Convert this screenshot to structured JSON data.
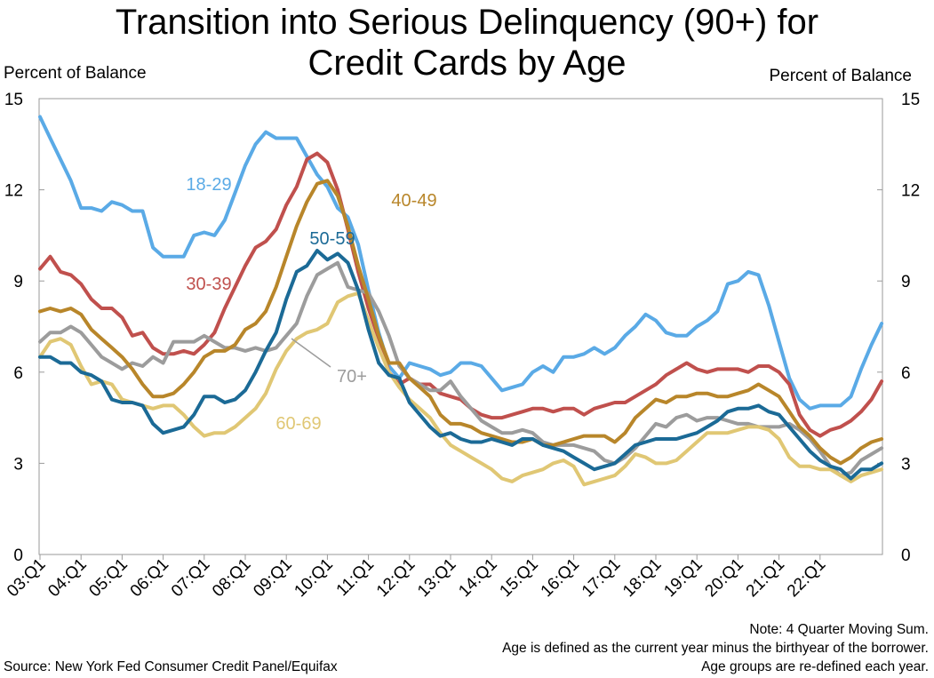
{
  "title_line1": "Transition into Serious Delinquency (90+) for",
  "title_line2": "Credit Cards by Age",
  "left_axis_label": "Percent of Balance",
  "right_axis_label": "Percent of Balance",
  "notes": [
    "Note: 4 Quarter Moving Sum.",
    "Age is defined as the current year minus the birthyear of the borrower.",
    "Age groups are re-defined each year."
  ],
  "source": "Source: New York Fed Consumer Credit Panel/Equifax",
  "chart_data": {
    "type": "line",
    "title": "Transition into Serious Delinquency (90+) for Credit Cards by Age",
    "ylabel": "Percent of Balance",
    "ylim": [
      0,
      15
    ],
    "yticks": [
      "0",
      "3",
      "6",
      "9",
      "12",
      "15"
    ],
    "x_tick_labels": [
      "03:Q1",
      "04:Q1",
      "05:Q1",
      "06:Q1",
      "07:Q1",
      "08:Q1",
      "09:Q1",
      "10:Q1",
      "11:Q1",
      "12:Q1",
      "13:Q1",
      "14:Q1",
      "15:Q1",
      "16:Q1",
      "17:Q1",
      "18:Q1",
      "19:Q1",
      "20:Q1",
      "21:Q1",
      "22:Q1"
    ],
    "x_start": "2003:Q1",
    "x_end": "2022:Q4",
    "series": [
      {
        "name": "18-29",
        "color": "#5AAAE6",
        "values": [
          14.4,
          13.7,
          13.0,
          12.3,
          11.4,
          11.4,
          11.3,
          11.6,
          11.5,
          11.3,
          11.3,
          10.1,
          9.8,
          9.8,
          9.8,
          10.5,
          10.6,
          10.5,
          11.0,
          11.9,
          12.8,
          13.5,
          13.9,
          13.7,
          13.7,
          13.7,
          13.1,
          12.5,
          12.1,
          11.4,
          11.1,
          10.2,
          8.7,
          7.3,
          6.2,
          5.8,
          6.3,
          6.2,
          6.1,
          5.9,
          6.0,
          6.3,
          6.3,
          6.2,
          5.8,
          5.4,
          5.5,
          5.6,
          6.0,
          6.2,
          6.0,
          6.5,
          6.5,
          6.6,
          6.8,
          6.6,
          6.8,
          7.2,
          7.5,
          7.9,
          7.7,
          7.3,
          7.2,
          7.2,
          7.5,
          7.7,
          8.0,
          8.9,
          9.0,
          9.3,
          9.2,
          8.2,
          7.0,
          5.8,
          5.1,
          4.8,
          4.9,
          4.9,
          4.9,
          5.2,
          6.1,
          6.9,
          7.6
        ]
      },
      {
        "name": "30-39",
        "color": "#C0504D",
        "values": [
          9.4,
          9.8,
          9.3,
          9.2,
          8.9,
          8.4,
          8.1,
          8.1,
          7.8,
          7.2,
          7.3,
          6.8,
          6.6,
          6.6,
          6.7,
          6.6,
          6.9,
          7.3,
          8.1,
          8.8,
          9.5,
          10.1,
          10.3,
          10.7,
          11.5,
          12.1,
          13.0,
          13.2,
          12.9,
          12.0,
          10.7,
          9.3,
          8.1,
          7.1,
          6.0,
          5.6,
          5.8,
          5.6,
          5.6,
          5.3,
          5.2,
          5.1,
          4.8,
          4.6,
          4.5,
          4.5,
          4.6,
          4.7,
          4.8,
          4.8,
          4.7,
          4.8,
          4.8,
          4.6,
          4.8,
          4.9,
          5.0,
          5.0,
          5.2,
          5.4,
          5.6,
          5.9,
          6.1,
          6.3,
          6.1,
          6.0,
          6.1,
          6.1,
          6.1,
          6.0,
          6.2,
          6.2,
          6.0,
          5.6,
          4.6,
          4.1,
          3.9,
          4.1,
          4.2,
          4.4,
          4.7,
          5.1,
          5.7
        ]
      },
      {
        "name": "40-49",
        "color": "#B8862A",
        "values": [
          8.0,
          8.1,
          8.0,
          8.1,
          7.9,
          7.4,
          7.1,
          6.8,
          6.5,
          6.1,
          5.6,
          5.2,
          5.2,
          5.3,
          5.6,
          6.0,
          6.5,
          6.7,
          6.7,
          6.9,
          7.4,
          7.6,
          8.0,
          8.8,
          9.8,
          10.8,
          11.6,
          12.2,
          12.3,
          11.8,
          10.8,
          9.5,
          8.4,
          7.2,
          6.3,
          6.3,
          5.8,
          5.5,
          5.2,
          4.6,
          4.3,
          4.3,
          4.2,
          4.0,
          3.9,
          3.8,
          3.7,
          3.7,
          3.8,
          3.6,
          3.6,
          3.7,
          3.8,
          3.9,
          3.9,
          3.9,
          3.7,
          4.0,
          4.5,
          4.8,
          5.1,
          5.0,
          5.2,
          5.2,
          5.3,
          5.3,
          5.2,
          5.2,
          5.3,
          5.4,
          5.6,
          5.4,
          5.2,
          4.7,
          4.2,
          3.9,
          3.5,
          3.2,
          3.0,
          3.2,
          3.5,
          3.7,
          3.8
        ]
      },
      {
        "name": "50-59",
        "color": "#1B6A96",
        "values": [
          6.5,
          6.5,
          6.3,
          6.3,
          6.0,
          5.9,
          5.7,
          5.1,
          5.0,
          5.0,
          4.9,
          4.3,
          4.0,
          4.1,
          4.2,
          4.6,
          5.2,
          5.2,
          5.0,
          5.1,
          5.4,
          6.0,
          6.7,
          7.3,
          8.4,
          9.3,
          9.5,
          10.0,
          9.7,
          9.9,
          9.6,
          8.7,
          7.4,
          6.3,
          5.9,
          5.8,
          5.0,
          4.6,
          4.2,
          3.9,
          4.0,
          3.8,
          3.7,
          3.7,
          3.8,
          3.7,
          3.6,
          3.8,
          3.8,
          3.6,
          3.5,
          3.4,
          3.2,
          3.0,
          2.8,
          2.9,
          3.0,
          3.3,
          3.6,
          3.7,
          3.8,
          3.8,
          3.8,
          3.9,
          4.0,
          4.2,
          4.4,
          4.7,
          4.8,
          4.8,
          4.9,
          4.7,
          4.6,
          4.2,
          3.8,
          3.4,
          3.1,
          2.9,
          2.8,
          2.5,
          2.8,
          2.8,
          3.0
        ]
      },
      {
        "name": "60-69",
        "color": "#E0C774",
        "values": [
          6.5,
          7.0,
          7.1,
          6.9,
          6.2,
          5.6,
          5.7,
          5.6,
          5.1,
          5.0,
          4.9,
          4.8,
          4.9,
          4.9,
          4.6,
          4.2,
          3.9,
          4.0,
          4.0,
          4.2,
          4.5,
          4.8,
          5.3,
          6.1,
          6.7,
          7.1,
          7.3,
          7.4,
          7.6,
          8.3,
          8.5,
          8.6,
          7.7,
          6.8,
          6.0,
          5.5,
          5.1,
          4.8,
          4.5,
          4.0,
          3.6,
          3.4,
          3.2,
          3.0,
          2.8,
          2.5,
          2.4,
          2.6,
          2.7,
          2.8,
          3.0,
          3.1,
          2.9,
          2.3,
          2.4,
          2.5,
          2.6,
          2.9,
          3.3,
          3.2,
          3.0,
          3.0,
          3.1,
          3.4,
          3.7,
          4.0,
          4.0,
          4.0,
          4.1,
          4.2,
          4.2,
          4.1,
          3.8,
          3.2,
          2.9,
          2.9,
          2.8,
          2.8,
          2.6,
          2.4,
          2.6,
          2.7,
          2.8
        ]
      },
      {
        "name": "70+",
        "color": "#9C9C9C",
        "values": [
          7.0,
          7.3,
          7.3,
          7.5,
          7.3,
          6.9,
          6.5,
          6.3,
          6.1,
          6.3,
          6.2,
          6.5,
          6.3,
          7.0,
          7.0,
          7.0,
          7.2,
          7.0,
          6.8,
          6.8,
          6.7,
          6.8,
          6.7,
          6.8,
          7.2,
          7.6,
          8.5,
          9.2,
          9.4,
          9.6,
          8.8,
          8.7,
          8.6,
          8.0,
          7.2,
          6.2,
          5.8,
          5.6,
          5.4,
          5.4,
          5.7,
          5.2,
          4.8,
          4.4,
          4.2,
          4.0,
          4.0,
          4.1,
          4.0,
          3.7,
          3.6,
          3.6,
          3.6,
          3.5,
          3.4,
          3.1,
          3.0,
          3.2,
          3.5,
          3.9,
          4.3,
          4.2,
          4.5,
          4.6,
          4.4,
          4.5,
          4.5,
          4.4,
          4.3,
          4.3,
          4.2,
          4.2,
          4.2,
          4.3,
          4.1,
          3.8,
          3.4,
          2.9,
          2.6,
          2.7,
          3.1,
          3.3,
          3.5
        ]
      }
    ],
    "annotations": [
      {
        "text": "18-29",
        "color": "#5AAAE6"
      },
      {
        "text": "30-39",
        "color": "#C0504D"
      },
      {
        "text": "40-49",
        "color": "#B8862A"
      },
      {
        "text": "50-59",
        "color": "#1B6A96"
      },
      {
        "text": "60-69",
        "color": "#E0C774"
      },
      {
        "text": "70+",
        "color": "#9C9C9C"
      }
    ],
    "grid": false
  }
}
